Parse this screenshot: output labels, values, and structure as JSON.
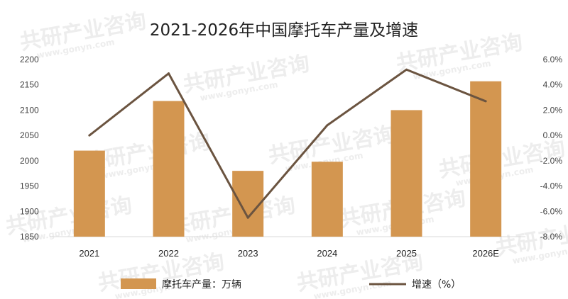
{
  "chart_data": {
    "type": "bar+line",
    "title": "2021-2026年中国摩托车产量及增速",
    "categories": [
      "2021",
      "2022",
      "2023",
      "2024",
      "2025",
      "2026E"
    ],
    "series": [
      {
        "name": "摩托车产量：万辆",
        "type": "bar",
        "axis": "left",
        "color": "#d39650",
        "values": [
          2020,
          2118,
          1980,
          1998,
          2100,
          2157
        ]
      },
      {
        "name": "增速（%）",
        "type": "line",
        "axis": "right",
        "color": "#6b5440",
        "values": [
          0.0,
          4.9,
          -6.5,
          0.8,
          5.2,
          2.7
        ]
      }
    ],
    "y_left": {
      "min": 1850,
      "max": 2200,
      "step": 50,
      "ticks": [
        "1850",
        "1900",
        "1950",
        "2000",
        "2050",
        "2100",
        "2150",
        "2200"
      ]
    },
    "y_right": {
      "min": -8,
      "max": 6,
      "step": 2,
      "ticks": [
        "-8.0%",
        "-6.0%",
        "-4.0%",
        "-2.0%",
        "0.0%",
        "2.0%",
        "4.0%",
        "6.0%"
      ]
    },
    "grid": false,
    "legend_position": "bottom"
  },
  "watermark": {
    "text": "共研产业咨询",
    "subtext": "www.gonyn.com"
  }
}
